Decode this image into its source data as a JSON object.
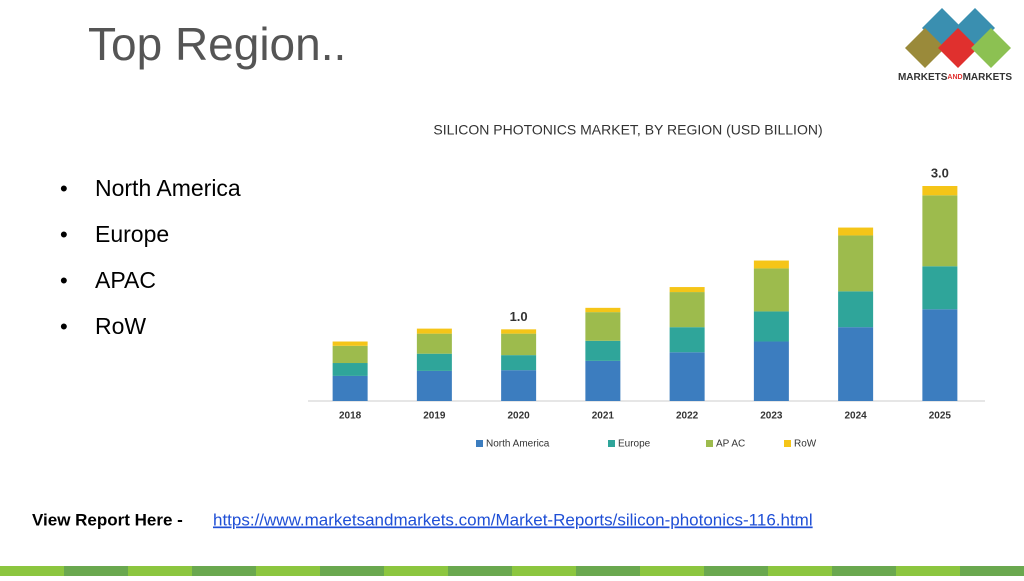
{
  "header": {
    "title": "Top Region.."
  },
  "logo": {
    "parts": [
      "MARKETS",
      "AND",
      "MARKETS"
    ]
  },
  "bullets": [
    "North America",
    "Europe",
    "APAC",
    "RoW"
  ],
  "chart_data": {
    "type": "stacked_bar",
    "title": "SILICON PHOTONICS MARKET, BY REGION (USD BILLION)",
    "categories": [
      "2018",
      "2019",
      "2020",
      "2021",
      "2022",
      "2023",
      "2024",
      "2025"
    ],
    "series": [
      {
        "name": "North America",
        "color": "#3c7dbf",
        "values": [
          0.35,
          0.42,
          0.43,
          0.56,
          0.68,
          0.83,
          1.03,
          1.28
        ]
      },
      {
        "name": "Europe",
        "color": "#2fa59a",
        "values": [
          0.18,
          0.24,
          0.21,
          0.28,
          0.35,
          0.42,
          0.5,
          0.6
        ]
      },
      {
        "name": "AP AC",
        "color": "#9dbb4d",
        "values": [
          0.24,
          0.28,
          0.3,
          0.4,
          0.49,
          0.6,
          0.78,
          0.99
        ]
      },
      {
        "name": "RoW",
        "color": "#f5c518",
        "values": [
          0.06,
          0.07,
          0.06,
          0.06,
          0.07,
          0.11,
          0.11,
          0.13
        ]
      }
    ],
    "total_labels": [
      null,
      null,
      "1.0",
      null,
      null,
      null,
      null,
      "3.0"
    ]
  },
  "footer": {
    "label": "View Report Here - ",
    "link": "https://www.marketsandmarkets.com/Market-Reports/silicon-photonics-116.html"
  }
}
